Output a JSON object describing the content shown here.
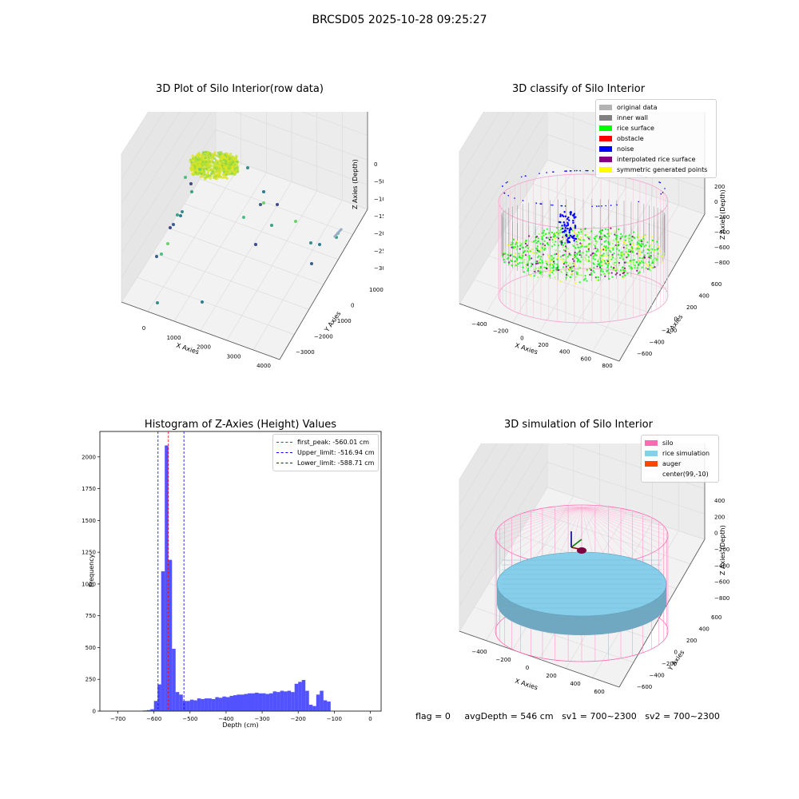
{
  "figure": {
    "title": "BRCSD05 2025-10-28 09:25:27",
    "status": {
      "flag": "flag = 0",
      "avg_depth": "avgDepth = 546 cm",
      "sv1": "sv1 = 700~2300",
      "sv2": "sv2 = 700~2300"
    }
  },
  "chart_data": [
    {
      "type": "scatter",
      "projection": "3d",
      "title": "3D Plot of Silo Interior(row data)",
      "xlabel": "X Axies",
      "ylabel": "Y Axies",
      "zlabel": "Z Axies (Depth)",
      "x_ticks": [
        "0",
        "1000",
        "2000",
        "3000",
        "4000"
      ],
      "y_ticks": [
        "1000",
        "0",
        "−1000",
        "−2000",
        "−3000"
      ],
      "z_ticks": [
        "0",
        "−500",
        "−1000",
        "−1500",
        "−2000",
        "−2500",
        "−3000"
      ],
      "colormap": "viridis"
    },
    {
      "type": "scatter",
      "projection": "3d",
      "title": "3D classify of Silo Interior",
      "xlabel": "X Axies",
      "ylabel": "Y Axies",
      "zlabel": "Z Axies (Depth)",
      "x_ticks": [
        "−400",
        "−200",
        "0",
        "200",
        "400",
        "600",
        "800"
      ],
      "y_ticks": [
        "600",
        "400",
        "200",
        "0",
        "−200",
        "−400",
        "−600"
      ],
      "z_ticks": [
        "200",
        "0",
        "−200",
        "−400",
        "−600",
        "−800"
      ],
      "legend": [
        {
          "label": "original data",
          "color": "#b3b3b3"
        },
        {
          "label": "inner wall",
          "color": "#808080"
        },
        {
          "label": "rice surface",
          "color": "#00ff00"
        },
        {
          "label": "obstacle",
          "color": "#ff0000"
        },
        {
          "label": "noise",
          "color": "#0000ff"
        },
        {
          "label": "interpolated rice surface",
          "color": "#800080"
        },
        {
          "label": "symmetric generated points",
          "color": "#ffff00"
        }
      ],
      "legend_position": "top-right"
    },
    {
      "type": "bar",
      "subtype": "histogram",
      "title": "Histogram of Z-Axies (Height) Values",
      "xlabel": "Depth (cm)",
      "ylabel": "Frequency",
      "xlim": [
        -750,
        30
      ],
      "ylim": [
        0,
        2200
      ],
      "x_ticks": [
        -700,
        -600,
        -500,
        -400,
        -300,
        -200,
        -100,
        0
      ],
      "y_ticks": [
        0,
        250,
        500,
        750,
        1000,
        1250,
        1500,
        1750,
        2000
      ],
      "bin_width": 10,
      "bar_color": "#0000ff",
      "bins": [
        [
          -630,
          5
        ],
        [
          -620,
          8
        ],
        [
          -610,
          15
        ],
        [
          -600,
          80
        ],
        [
          -590,
          210
        ],
        [
          -580,
          1100
        ],
        [
          -570,
          2090
        ],
        [
          -560,
          1190
        ],
        [
          -550,
          490
        ],
        [
          -540,
          150
        ],
        [
          -530,
          130
        ],
        [
          -520,
          80
        ],
        [
          -510,
          80
        ],
        [
          -500,
          90
        ],
        [
          -490,
          85
        ],
        [
          -480,
          100
        ],
        [
          -470,
          95
        ],
        [
          -460,
          100
        ],
        [
          -450,
          100
        ],
        [
          -440,
          95
        ],
        [
          -430,
          110
        ],
        [
          -420,
          105
        ],
        [
          -410,
          115
        ],
        [
          -400,
          110
        ],
        [
          -390,
          120
        ],
        [
          -380,
          125
        ],
        [
          -370,
          130
        ],
        [
          -360,
          130
        ],
        [
          -350,
          135
        ],
        [
          -340,
          140
        ],
        [
          -330,
          140
        ],
        [
          -320,
          145
        ],
        [
          -310,
          140
        ],
        [
          -300,
          140
        ],
        [
          -290,
          135
        ],
        [
          -280,
          140
        ],
        [
          -270,
          155
        ],
        [
          -260,
          150
        ],
        [
          -250,
          160
        ],
        [
          -240,
          155
        ],
        [
          -230,
          160
        ],
        [
          -220,
          150
        ],
        [
          -210,
          215
        ],
        [
          -200,
          230
        ],
        [
          -190,
          245
        ],
        [
          -180,
          160
        ],
        [
          -170,
          50
        ],
        [
          -160,
          40
        ],
        [
          -150,
          130
        ],
        [
          -140,
          160
        ],
        [
          -130,
          85
        ],
        [
          -120,
          75
        ]
      ],
      "lines": [
        {
          "label": "first_peak: -560.01 cm",
          "x": -560.01,
          "color": "#ff0000"
        },
        {
          "label": "Upper_limit: -516.94 cm",
          "x": -516.94,
          "color": "#0000ff"
        },
        {
          "label": "Lower_limit: -588.71 cm",
          "x": -588.71,
          "color": "#0000ff"
        }
      ],
      "legend_position": "top-right"
    },
    {
      "type": "scatter",
      "projection": "3d",
      "title": "3D simulation of Silo Interior",
      "xlabel": "X Axies",
      "ylabel": "Y Axies",
      "zlabel": "Z Axies (Depth)",
      "x_ticks": [
        "−400",
        "−200",
        "0",
        "200",
        "400",
        "600"
      ],
      "y_ticks": [
        "600",
        "400",
        "200",
        "0",
        "−200",
        "−400",
        "−600"
      ],
      "z_ticks": [
        "400",
        "200",
        "0",
        "−200",
        "−400",
        "−600",
        "−800"
      ],
      "legend": [
        {
          "label": "silo",
          "color": "#ff69b4"
        },
        {
          "label": "rice simulation",
          "color": "#87ceeb"
        },
        {
          "label": "auger",
          "color": "#ff4500"
        },
        {
          "label": "center(99,-10)",
          "color": "#ffffff"
        }
      ],
      "legend_position": "top-right"
    }
  ]
}
